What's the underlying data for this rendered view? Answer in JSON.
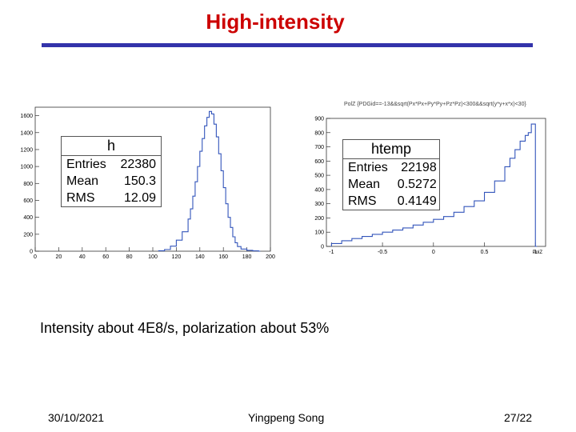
{
  "slide": {
    "title": "High-intensity",
    "caption": "Intensity about 4E8/s, polarization about 53%",
    "footer": {
      "date": "30/10/2021",
      "author": "Yingpeng Song",
      "page": "27/22"
    }
  },
  "colors": {
    "title": "#cc0000",
    "rule": "#3333aa",
    "hist_line": "#3355bb"
  },
  "chart_data": [
    {
      "type": "bar",
      "title": "",
      "xlim": [
        0,
        200
      ],
      "ylim": [
        0,
        1700
      ],
      "xticks": [
        0,
        20,
        40,
        60,
        80,
        100,
        120,
        140,
        160,
        180,
        200
      ],
      "yticks": [
        0,
        200,
        400,
        600,
        800,
        1000,
        1200,
        1400,
        1600
      ],
      "stats": {
        "name": "h",
        "entries_label": "Entries",
        "entries": "22380",
        "mean_label": "Mean",
        "mean": "150.3",
        "rms_label": "RMS",
        "rms": "12.09"
      },
      "bins_x": [
        105,
        110,
        115,
        120,
        125,
        130,
        132,
        134,
        136,
        138,
        140,
        142,
        144,
        146,
        148,
        150,
        152,
        154,
        156,
        158,
        160,
        162,
        164,
        166,
        168,
        170,
        172,
        175,
        180,
        185,
        190
      ],
      "bins_y": [
        5,
        20,
        60,
        130,
        230,
        380,
        500,
        650,
        820,
        1000,
        1180,
        1330,
        1480,
        1580,
        1650,
        1620,
        1500,
        1350,
        1150,
        950,
        750,
        560,
        400,
        280,
        170,
        100,
        55,
        25,
        10,
        4,
        0
      ]
    },
    {
      "type": "bar",
      "title": "PolZ {PDGid==-13&&sqrt(Px*Px+Py*Py+Pz*Pz)<300&&sqrt(y*y+x*x)<30}",
      "xlabel": "PolZ",
      "xlim": [
        -1.05,
        1.1
      ],
      "ylim": [
        0,
        900
      ],
      "xticks": [
        -1,
        -0.5,
        0,
        0.5,
        1
      ],
      "yticks": [
        0,
        100,
        200,
        300,
        400,
        500,
        600,
        700,
        800,
        900
      ],
      "stats": {
        "name": "htemp",
        "entries_label": "Entries",
        "entries": "22198",
        "mean_label": "Mean",
        "mean": "0.5272",
        "rms_label": "RMS",
        "rms": "0.4149"
      },
      "bins_x": [
        -1,
        -0.9,
        -0.8,
        -0.7,
        -0.6,
        -0.5,
        -0.4,
        -0.3,
        -0.2,
        -0.1,
        0,
        0.1,
        0.2,
        0.3,
        0.4,
        0.5,
        0.6,
        0.7,
        0.75,
        0.8,
        0.85,
        0.9,
        0.93,
        0.96,
        1.0
      ],
      "bins_y": [
        20,
        40,
        55,
        70,
        85,
        100,
        115,
        130,
        150,
        170,
        190,
        210,
        240,
        280,
        320,
        380,
        460,
        560,
        620,
        680,
        740,
        780,
        800,
        860,
        0
      ]
    }
  ]
}
